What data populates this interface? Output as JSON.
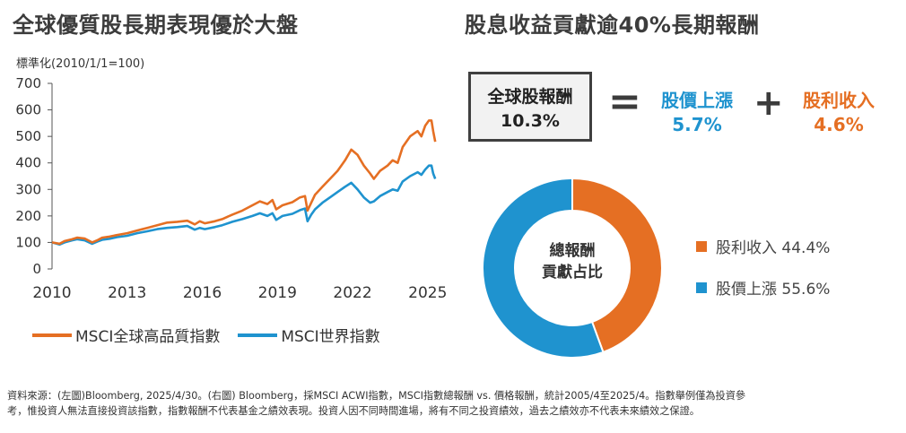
{
  "left": {
    "title": "全球優質股長期表現優於大盤",
    "unit_label": "標準化(2010/1/1=100)",
    "legend": [
      {
        "label": "MSCI全球高品質指數",
        "color": "#e56f23"
      },
      {
        "label": "MSCI世界指數",
        "color": "#1f93cf"
      }
    ]
  },
  "right": {
    "title": "股息收益貢獻逾40%長期報酬",
    "total": {
      "label": "全球股報酬",
      "value": "10.3%"
    },
    "equals": "=",
    "plus": "+",
    "price": {
      "label": "股價上漲",
      "value": "5.7%"
    },
    "dividend": {
      "label": "股利收入",
      "value": "4.6%"
    },
    "donut_center": [
      "總報酬",
      "貢獻占比"
    ],
    "donut_legend": [
      {
        "label": "股利收入 44.4%",
        "color": "#e56f23"
      },
      {
        "label": "股價上漲 55.6%",
        "color": "#1f93cf"
      }
    ]
  },
  "footnote": [
    "資料來源：(左圖)Bloomberg, 2025/4/30。(右圖) Bloomberg，採MSCI ACWI指數，MSCI指數總報酬 vs. 價格報酬，統計2005/4至2025/4。指數舉例僅為投資參",
    "考，惟投資人無法直接投資該指數，指數報酬不代表基金之績效表現。投資人因不同時間進場，將有不同之投資績效，過去之績效亦不代表未來績效之保證。"
  ],
  "chart_data": [
    {
      "type": "line",
      "title": "全球優質股長期表現優於大盤",
      "ylabel": "標準化(2010/1/1=100)",
      "xlabel": "",
      "ylim": [
        0,
        700
      ],
      "xlim": [
        2010,
        2025.33
      ],
      "yticks": [
        0,
        100,
        200,
        300,
        400,
        500,
        600,
        700
      ],
      "xticks": [
        2010,
        2013,
        2016,
        2019,
        2022,
        2025
      ],
      "grid": false,
      "legend_position": "bottom",
      "series": [
        {
          "name": "MSCI全球高品質指數",
          "color": "#e56f23",
          "x": [
            2010,
            2010.3,
            2010.5,
            2010.8,
            2011,
            2011.3,
            2011.6,
            2011.8,
            2012,
            2012.3,
            2012.6,
            2013,
            2013.4,
            2013.8,
            2014.2,
            2014.6,
            2015,
            2015.4,
            2015.7,
            2015.9,
            2016.1,
            2016.5,
            2016.8,
            2017.2,
            2017.6,
            2018,
            2018.3,
            2018.6,
            2018.8,
            2018.95,
            2019.2,
            2019.6,
            2019.9,
            2020.1,
            2020.2,
            2020.35,
            2020.5,
            2020.8,
            2021.1,
            2021.4,
            2021.7,
            2021.95,
            2022.2,
            2022.45,
            2022.7,
            2022.85,
            2023.1,
            2023.4,
            2023.6,
            2023.8,
            2024,
            2024.3,
            2024.6,
            2024.75,
            2024.9,
            2025.05,
            2025.15,
            2025.22,
            2025.3
          ],
          "y": [
            100,
            95,
            105,
            112,
            118,
            115,
            100,
            108,
            118,
            122,
            128,
            135,
            145,
            155,
            165,
            175,
            178,
            182,
            168,
            180,
            172,
            180,
            188,
            205,
            220,
            240,
            255,
            245,
            260,
            225,
            240,
            252,
            270,
            275,
            220,
            250,
            280,
            310,
            340,
            370,
            410,
            450,
            430,
            390,
            360,
            340,
            370,
            390,
            410,
            400,
            460,
            500,
            520,
            500,
            540,
            560,
            560,
            520,
            480
          ]
        },
        {
          "name": "MSCI世界指數",
          "color": "#1f93cf",
          "x": [
            2010,
            2010.3,
            2010.5,
            2010.8,
            2011,
            2011.3,
            2011.6,
            2011.8,
            2012,
            2012.3,
            2012.6,
            2013,
            2013.4,
            2013.8,
            2014.2,
            2014.6,
            2015,
            2015.4,
            2015.7,
            2015.9,
            2016.1,
            2016.5,
            2016.8,
            2017.2,
            2017.6,
            2018,
            2018.3,
            2018.6,
            2018.8,
            2018.95,
            2019.2,
            2019.6,
            2019.9,
            2020.1,
            2020.2,
            2020.35,
            2020.5,
            2020.8,
            2021.1,
            2021.4,
            2021.7,
            2021.95,
            2022.2,
            2022.45,
            2022.7,
            2022.85,
            2023.1,
            2023.4,
            2023.6,
            2023.8,
            2024,
            2024.3,
            2024.6,
            2024.75,
            2024.9,
            2025.05,
            2025.15,
            2025.22,
            2025.3
          ],
          "y": [
            100,
            92,
            100,
            108,
            112,
            108,
            95,
            103,
            110,
            114,
            120,
            125,
            135,
            142,
            150,
            155,
            158,
            162,
            148,
            155,
            150,
            158,
            165,
            178,
            188,
            200,
            210,
            200,
            210,
            185,
            200,
            208,
            222,
            228,
            180,
            205,
            225,
            250,
            270,
            290,
            310,
            325,
            300,
            270,
            250,
            255,
            275,
            290,
            300,
            295,
            330,
            350,
            365,
            355,
            375,
            390,
            390,
            360,
            340
          ]
        }
      ]
    },
    {
      "type": "pie",
      "title": "總報酬貢獻占比",
      "donut": true,
      "categories": [
        "股利收入",
        "股價上漲"
      ],
      "values": [
        44.4,
        55.6
      ],
      "colors": [
        "#e56f23",
        "#1f93cf"
      ],
      "legend_position": "right"
    }
  ]
}
